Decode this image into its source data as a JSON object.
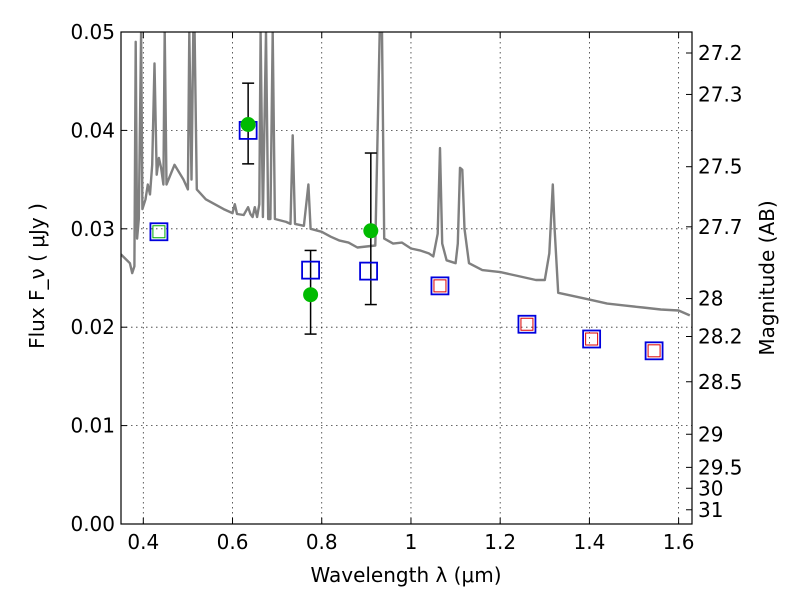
{
  "chart_data": {
    "type": "scatter",
    "xlabel": "Wavelength  λ (μm)",
    "ylabel": "Flux  F_ν  ( μJy )",
    "y2label": "Magnitude (AB)",
    "xlim": [
      0.35,
      1.63
    ],
    "ylim": [
      0.0,
      0.05
    ],
    "grid": true,
    "x_ticks": [
      {
        "value": 0.4,
        "label": "0.4"
      },
      {
        "value": 0.6,
        "label": "0.6"
      },
      {
        "value": 0.8,
        "label": "0.8"
      },
      {
        "value": 1.0,
        "label": "1"
      },
      {
        "value": 1.2,
        "label": "1.2"
      },
      {
        "value": 1.4,
        "label": "1.4"
      },
      {
        "value": 1.6,
        "label": "1.6"
      }
    ],
    "y_ticks": [
      {
        "value": 0.0,
        "label": "0.00"
      },
      {
        "value": 0.01,
        "label": "0.01"
      },
      {
        "value": 0.02,
        "label": "0.02"
      },
      {
        "value": 0.03,
        "label": "0.03"
      },
      {
        "value": 0.04,
        "label": "0.04"
      },
      {
        "value": 0.05,
        "label": "0.05"
      }
    ],
    "y2_ticks": [
      {
        "value": 27.2,
        "label": "27.2"
      },
      {
        "value": 27.3,
        "label": "27.3"
      },
      {
        "value": 27.5,
        "label": "27.5"
      },
      {
        "value": 27.7,
        "label": "27.7"
      },
      {
        "value": 28.0,
        "label": "28"
      },
      {
        "value": 28.2,
        "label": "28.2"
      },
      {
        "value": 28.5,
        "label": "28.5"
      },
      {
        "value": 29.0,
        "label": "29"
      },
      {
        "value": 29.5,
        "label": "29.5"
      },
      {
        "value": 30.0,
        "label": "30"
      },
      {
        "value": 31.0,
        "label": "31"
      }
    ],
    "colors": {
      "spectrum": "#808080",
      "observed": "#00bb00",
      "model_box": "#0000dd",
      "inner_red": "#dd0000",
      "inner_green": "#00aa00",
      "errorbar": "#000000"
    },
    "series": [
      {
        "role": "model spectrum line",
        "points": [
          [
            0.35,
            0.0274
          ],
          [
            0.37,
            0.0265
          ],
          [
            0.375,
            0.0255
          ],
          [
            0.38,
            0.0262
          ],
          [
            0.383,
            0.049
          ],
          [
            0.386,
            0.029
          ],
          [
            0.39,
            0.031
          ],
          [
            0.395,
            0.05
          ],
          [
            0.398,
            0.032
          ],
          [
            0.405,
            0.033
          ],
          [
            0.41,
            0.0345
          ],
          [
            0.415,
            0.0335
          ],
          [
            0.42,
            0.0365
          ],
          [
            0.425,
            0.0468
          ],
          [
            0.43,
            0.0355
          ],
          [
            0.435,
            0.0372
          ],
          [
            0.44,
            0.0362
          ],
          [
            0.445,
            0.0345
          ],
          [
            0.448,
            0.0502
          ],
          [
            0.452,
            0.0345
          ],
          [
            0.47,
            0.0365
          ],
          [
            0.49,
            0.035
          ],
          [
            0.5,
            0.034
          ],
          [
            0.503,
            0.05
          ],
          [
            0.508,
            0.035
          ],
          [
            0.512,
            0.05
          ],
          [
            0.515,
            0.05
          ],
          [
            0.52,
            0.034
          ],
          [
            0.54,
            0.033
          ],
          [
            0.56,
            0.0325
          ],
          [
            0.58,
            0.032
          ],
          [
            0.6,
            0.0316
          ],
          [
            0.605,
            0.0325
          ],
          [
            0.61,
            0.0315
          ],
          [
            0.625,
            0.0314
          ],
          [
            0.635,
            0.0322
          ],
          [
            0.64,
            0.0315
          ],
          [
            0.645,
            0.0312
          ],
          [
            0.65,
            0.0322
          ],
          [
            0.655,
            0.0312
          ],
          [
            0.66,
            0.0325
          ],
          [
            0.663,
            0.05
          ],
          [
            0.668,
            0.0312
          ],
          [
            0.675,
            0.05
          ],
          [
            0.68,
            0.031
          ],
          [
            0.685,
            0.031
          ],
          [
            0.69,
            0.05
          ],
          [
            0.695,
            0.031
          ],
          [
            0.72,
            0.0307
          ],
          [
            0.73,
            0.0305
          ],
          [
            0.735,
            0.0395
          ],
          [
            0.74,
            0.0305
          ],
          [
            0.76,
            0.0303
          ],
          [
            0.77,
            0.0345
          ],
          [
            0.775,
            0.03
          ],
          [
            0.8,
            0.0297
          ],
          [
            0.82,
            0.0292
          ],
          [
            0.84,
            0.0288
          ],
          [
            0.86,
            0.0286
          ],
          [
            0.88,
            0.0281
          ],
          [
            0.9,
            0.0282
          ],
          [
            0.92,
            0.0283
          ],
          [
            0.93,
            0.05
          ],
          [
            0.935,
            0.05
          ],
          [
            0.94,
            0.029
          ],
          [
            0.96,
            0.0285
          ],
          [
            0.98,
            0.0286
          ],
          [
            1.0,
            0.028
          ],
          [
            1.02,
            0.0278
          ],
          [
            1.04,
            0.0275
          ],
          [
            1.05,
            0.0272
          ],
          [
            1.06,
            0.0295
          ],
          [
            1.065,
            0.0382
          ],
          [
            1.07,
            0.0285
          ],
          [
            1.08,
            0.0268
          ],
          [
            1.1,
            0.0265
          ],
          [
            1.105,
            0.0285
          ],
          [
            1.11,
            0.0362
          ],
          [
            1.115,
            0.036
          ],
          [
            1.12,
            0.03
          ],
          [
            1.13,
            0.0265
          ],
          [
            1.16,
            0.0258
          ],
          [
            1.2,
            0.0256
          ],
          [
            1.24,
            0.0252
          ],
          [
            1.26,
            0.025
          ],
          [
            1.28,
            0.0248
          ],
          [
            1.3,
            0.0248
          ],
          [
            1.31,
            0.0275
          ],
          [
            1.318,
            0.0345
          ],
          [
            1.322,
            0.03
          ],
          [
            1.33,
            0.0235
          ],
          [
            1.36,
            0.0232
          ],
          [
            1.4,
            0.0228
          ],
          [
            1.44,
            0.0224
          ],
          [
            1.48,
            0.0222
          ],
          [
            1.52,
            0.022
          ],
          [
            1.56,
            0.0218
          ],
          [
            1.6,
            0.0217
          ],
          [
            1.625,
            0.0212
          ]
        ]
      },
      {
        "role": "observed photometry with error bars",
        "points": [
          {
            "x": 0.635,
            "y": 0.0406,
            "yerr": [
              0.0366,
              0.0448
            ]
          },
          {
            "x": 0.775,
            "y": 0.0233,
            "yerr": [
              0.0193,
              0.0278
            ]
          },
          {
            "x": 0.91,
            "y": 0.0298,
            "yerr": [
              0.0223,
              0.0377
            ]
          }
        ]
      },
      {
        "role": "model photometry (blue squares)",
        "points": [
          {
            "x": 0.435,
            "y": 0.0297,
            "inner": "green"
          },
          {
            "x": 0.635,
            "y": 0.04,
            "inner": "none"
          },
          {
            "x": 0.775,
            "y": 0.0258,
            "inner": "none"
          },
          {
            "x": 0.905,
            "y": 0.0257,
            "inner": "none"
          },
          {
            "x": 1.065,
            "y": 0.0242,
            "inner": "red"
          },
          {
            "x": 1.26,
            "y": 0.0203,
            "inner": "red"
          },
          {
            "x": 1.405,
            "y": 0.0188,
            "inner": "red"
          },
          {
            "x": 1.545,
            "y": 0.0176,
            "inner": "red"
          }
        ]
      }
    ]
  }
}
